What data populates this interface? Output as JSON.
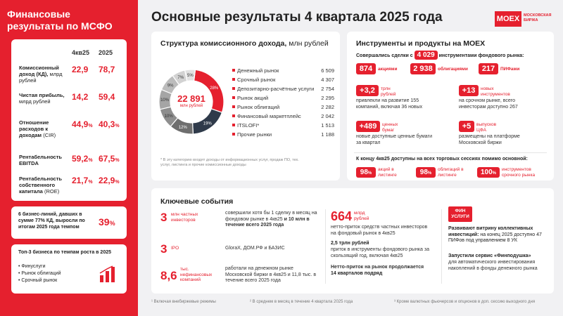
{
  "sidebar": {
    "title": "Финансовые результаты по МСФО",
    "col1": "4кв25",
    "col2": "2025",
    "kpis": [
      {
        "label_bold": "Комиссионный доход (КД),",
        "label": "млрд рублей",
        "v1": "22,9",
        "v1_unit": "",
        "v2": "78,7",
        "v2_unit": ""
      },
      {
        "label_bold": "Чистая прибыль,",
        "label": "млрд рублей",
        "v1": "14,2",
        "v1_unit": "",
        "v2": "59,4",
        "v2_unit": ""
      },
      {
        "label_bold": "Отношение расходов к доходам",
        "label": "(CIR)",
        "v1": "44,9",
        "v1_unit": "%",
        "v2": "40,3",
        "v2_unit": "%"
      },
      {
        "label_bold": "Рентабельность EBITDA",
        "label": "",
        "v1": "59,2",
        "v1_unit": "%",
        "v2": "67,5",
        "v2_unit": "%"
      },
      {
        "label_bold": "Рентабельность собственного капитала",
        "label": "(ROE)",
        "v1": "21,7",
        "v1_unit": "%",
        "v2": "22,9",
        "v2_unit": "%"
      }
    ],
    "bizlines_text": "6 бизнес-линий, давших в сумме 77% КД, выросли по итогам 2025 года темпом",
    "bizlines_value": "39",
    "bizlines_unit": "%",
    "top3_title": "Топ-3 бизнеса по темпам роста в 2025",
    "top3_items": [
      "Финуслуги",
      "Рынок облигаций",
      "Срочный рынок"
    ]
  },
  "header": {
    "title": "Основные результаты 4 квартала 2025 года",
    "logo_main": "MOEX",
    "logo_sub1": "МОСКОВСКАЯ",
    "logo_sub2": "БИРЖА"
  },
  "commission": {
    "title": "Структура комиссионного дохода,",
    "title_unit": "млн рублей",
    "total": "22 891",
    "total_unit": "млн рублей",
    "note": "* В эту категорию входят доходы от информационных услуг, продаж ПО, тех. услуг, листинга и прочие комиссионные доходы",
    "legend": [
      {
        "name": "Денежный рынок",
        "value": "6 509",
        "color": "#e5202e"
      },
      {
        "name": "Срочный рынок",
        "value": "4 307",
        "color": "#2f3a4a"
      },
      {
        "name": "Депозитарно-расчётные услуги",
        "value": "2 754",
        "color": "#6e6e6e"
      },
      {
        "name": "Рынок акций",
        "value": "2 295",
        "color": "#8e8e8e"
      },
      {
        "name": "Рынок облигаций",
        "value": "2 282",
        "color": "#a5a5a5"
      },
      {
        "name": "Финансовый маркетплейс",
        "value": "2 042",
        "color": "#bcbcbc"
      },
      {
        "name": "ITSLOFI*",
        "value": "1 513",
        "color": "#d2d2d2"
      },
      {
        "name": "Прочие рынки",
        "value": "1 188",
        "color": "#e2e2e2"
      }
    ]
  },
  "chart_data": {
    "type": "pie",
    "title": "Структура комиссионного дохода, млн рублей",
    "categories": [
      "Денежный рынок",
      "Срочный рынок",
      "Депозитарно-расчётные услуги",
      "Рынок акций",
      "Рынок облигаций",
      "Финансовый маркетплейс",
      "ITSLOFI*",
      "Прочие рынки"
    ],
    "values": [
      6509,
      4307,
      2754,
      2295,
      2282,
      2042,
      1513,
      1188
    ],
    "slice_labels": [
      "28%",
      "19%",
      "12%",
      "10%",
      "10%",
      "9%",
      "7%",
      "5%"
    ],
    "colors": [
      "#e5202e",
      "#2f3a4a",
      "#6e6e6e",
      "#8e8e8e",
      "#a5a5a5",
      "#bcbcbc",
      "#d2d2d2",
      "#e2e2e2"
    ]
  },
  "instruments": {
    "title": "Инструменты и продукты на MOEX",
    "deals_pre": "Совершались сделки с",
    "deals_value": "4 029",
    "deals_post": "инструментами фондового рынка:",
    "stocks_value": "874",
    "stocks_label": "акциями",
    "bonds_value": "2 938",
    "bonds_label": "облигациями",
    "pif_value": "217",
    "pif_label": "ПИФами",
    "stat1_value": "+3,2",
    "stat1_unit": "трлн рублей",
    "stat1_text": "привлекли на развитие 155 компаний, включая 36 новых",
    "stat2_value": "+13",
    "stat2_unit": "новых инструментов",
    "stat2_text": "на срочном рынке, всего инвесторам доступно 267",
    "stat3_value": "+489",
    "stat3_unit": "ценных бумаг",
    "stat3_text": "новые доступные ценные бумаги за квартал",
    "stat4_value": "+5",
    "stat4_unit": "выпусков ЦФА",
    "stat4_text": "размещены на платформе Московской биржи",
    "sessions_title": "К концу 4кв25 доступны на всех торговых сессиях помимо основной:",
    "s1_value": "98",
    "s1_unit": "%",
    "s1_label": "акций в листинге",
    "s2_value": "98",
    "s2_unit": "%",
    "s2_label": "облигаций в листинге",
    "s3_value": "100",
    "s3_unit": "%",
    "s3_label": "инструментов срочного рынка"
  },
  "events": {
    "title": "Ключевые события",
    "e1_value": "3",
    "e1_unit": "млн частных инвесторов",
    "e1_text": "совершили хотя бы 1 сделку в месяц на фондовом рынке в 4кв25",
    "e1_text2": "и 10 млн в течение всего 2025 года",
    "e2_value": "3",
    "e2_unit": "IPO",
    "e2_text": "GloraX, ДОМ.РФ и БАЗИС",
    "e3_value": "8,6",
    "e3_unit": "тыс. нефинансовых компаний",
    "e3_text": "работали на денежном рынке Московской биржи в 4кв25 и 11,8 тыс. в течение всего 2025 года",
    "m1_value": "664",
    "m1_unit": "млрд рублей",
    "m1_text": "нетто-приток средств частных инвесторов на фондовый рынок в 4кв25",
    "m2_title": "2,5 трлн рублей",
    "m2_text": "приток в инструменты фондового рынка за скользящий год, включая 4кв25",
    "m3_title": "Нетто-приток на рынок продолжается",
    "m3_text": "14 кварталов подряд",
    "fin_logo1": "ФИН",
    "fin_logo2": "УСЛУГИ",
    "r1_title": "Развивают витрину коллективных инвестиций:",
    "r1_text": "на конец 2025 доступно 47 ПИФов под управлением 8 УК",
    "r2_title": "Запустили сервис «Финподушка»",
    "r2_text": "для автоматического инвестирования накоплений в фонды денежного рынка"
  },
  "footnotes": {
    "f1": "¹ Включая внебиржевые режимы",
    "f2": "² В среднем в месяц в течение 4 квартала 2025 года",
    "f3": "³ Кроме валютных фьючерсов и опционов в доп. сессию выходного дня"
  }
}
